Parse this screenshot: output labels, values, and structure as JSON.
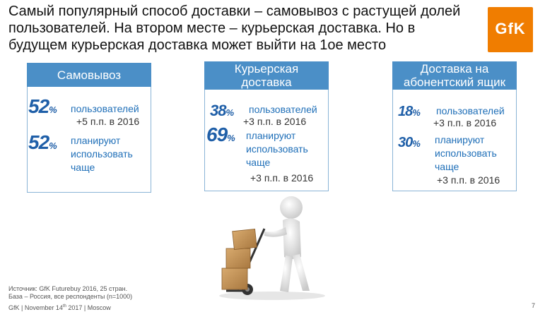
{
  "title": "Самый популярный способ доставки – самовывоз с растущей долей пользователей. На втором месте – курьерская доставка. Но в будущем курьерская доставка может выйти на 1ое место",
  "logo": {
    "text": "GfK",
    "color": "#f07d00"
  },
  "cards": [
    {
      "header": "Самовывоз",
      "users_pct": "52",
      "users_label": "пользователей",
      "users_change": "+5 п.п. в 2016",
      "plan_pct": "52",
      "plan_label_1": "планируют",
      "plan_label_2": "использовать",
      "plan_label_3": "чаще",
      "plan_change": ""
    },
    {
      "header_1": "Курьерская",
      "header_2": "доставка",
      "users_pct": "38",
      "users_label": "пользователей",
      "users_change": "+3 п.п. в 2016",
      "plan_pct": "69",
      "plan_label_1": "планируют",
      "plan_label_2": "использовать",
      "plan_label_3": "чаще",
      "plan_change": "+3 п.п. в 2016"
    },
    {
      "header_1": "Доставка на",
      "header_2": "абонентский ящик",
      "users_pct": "18",
      "users_label": "пользователей",
      "users_change": "+3 п.п. в 2016",
      "plan_pct": "30",
      "plan_label_1": "планируют",
      "plan_label_2": "использовать",
      "plan_label_3": "чаще",
      "plan_change": "+3 п.п. в 2016"
    }
  ],
  "percent_symbol": "%",
  "footer": {
    "source": "Источник: GfK Futurebuy 2016, 25 стран.",
    "base": "База – Россия, все респонденты (n=1000)",
    "company": "GfK | November 14",
    "sup": "th",
    "company_rest": " 2017 | Moscow",
    "page": "7"
  },
  "colors": {
    "header_bg": "#4b8fc7",
    "accent": "#1f5fa8",
    "border": "#8ab4d6"
  }
}
